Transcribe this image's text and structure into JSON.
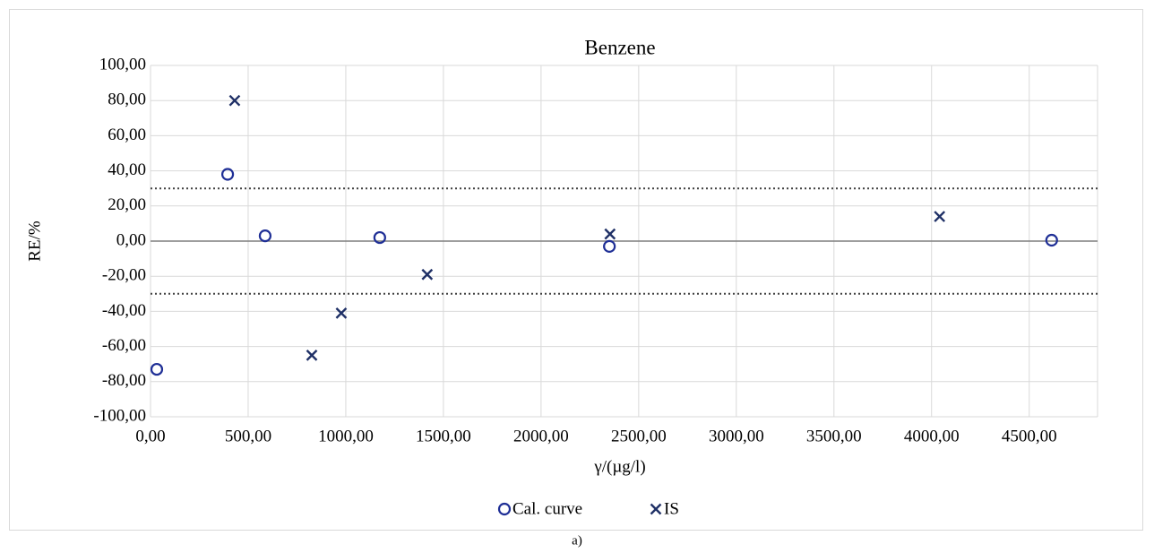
{
  "chart_data": {
    "type": "scatter",
    "title": "Benzene",
    "x_label": "γ/(µg/l)",
    "y_label": "RE/%",
    "caption": "a)",
    "xlim": [
      0,
      4850
    ],
    "ylim": [
      -100,
      100
    ],
    "xticks": [
      {
        "value": 0,
        "label": "0,00"
      },
      {
        "value": 500,
        "label": "500,00"
      },
      {
        "value": 1000,
        "label": "1000,00"
      },
      {
        "value": 1500,
        "label": "1500,00"
      },
      {
        "value": 2000,
        "label": "2000,00"
      },
      {
        "value": 2500,
        "label": "2500,00"
      },
      {
        "value": 3000,
        "label": "3000,00"
      },
      {
        "value": 3500,
        "label": "3500,00"
      },
      {
        "value": 4000,
        "label": "4000,00"
      },
      {
        "value": 4500,
        "label": "4500,00"
      }
    ],
    "yticks": [
      {
        "value": -100,
        "label": "-100,00"
      },
      {
        "value": -80,
        "label": "-80,00"
      },
      {
        "value": -60,
        "label": "-60,00"
      },
      {
        "value": -40,
        "label": "-40,00"
      },
      {
        "value": -20,
        "label": "-20,00"
      },
      {
        "value": 0,
        "label": "0,00"
      },
      {
        "value": 20,
        "label": "20,00"
      },
      {
        "value": 40,
        "label": "40,00"
      },
      {
        "value": 60,
        "label": "60,00"
      },
      {
        "value": 80,
        "label": "80,00"
      },
      {
        "value": 100,
        "label": "100,00"
      }
    ],
    "grid": true,
    "reference_lines": [
      30,
      -30
    ],
    "legend": "bottom",
    "series": [
      {
        "name": "Cal. curve",
        "marker": "circle",
        "color": "#1f2f96",
        "x": [
          32,
          395,
          587,
          1174,
          2350,
          4615
        ],
        "values": [
          -73,
          38,
          3,
          2,
          -3,
          0.5
        ]
      },
      {
        "name": "IS",
        "marker": "x",
        "color": "#1f3066",
        "x": [
          431,
          826,
          977,
          1417,
          2353,
          4041
        ],
        "values": [
          80,
          -65,
          -41,
          -19,
          4,
          14
        ]
      }
    ]
  }
}
